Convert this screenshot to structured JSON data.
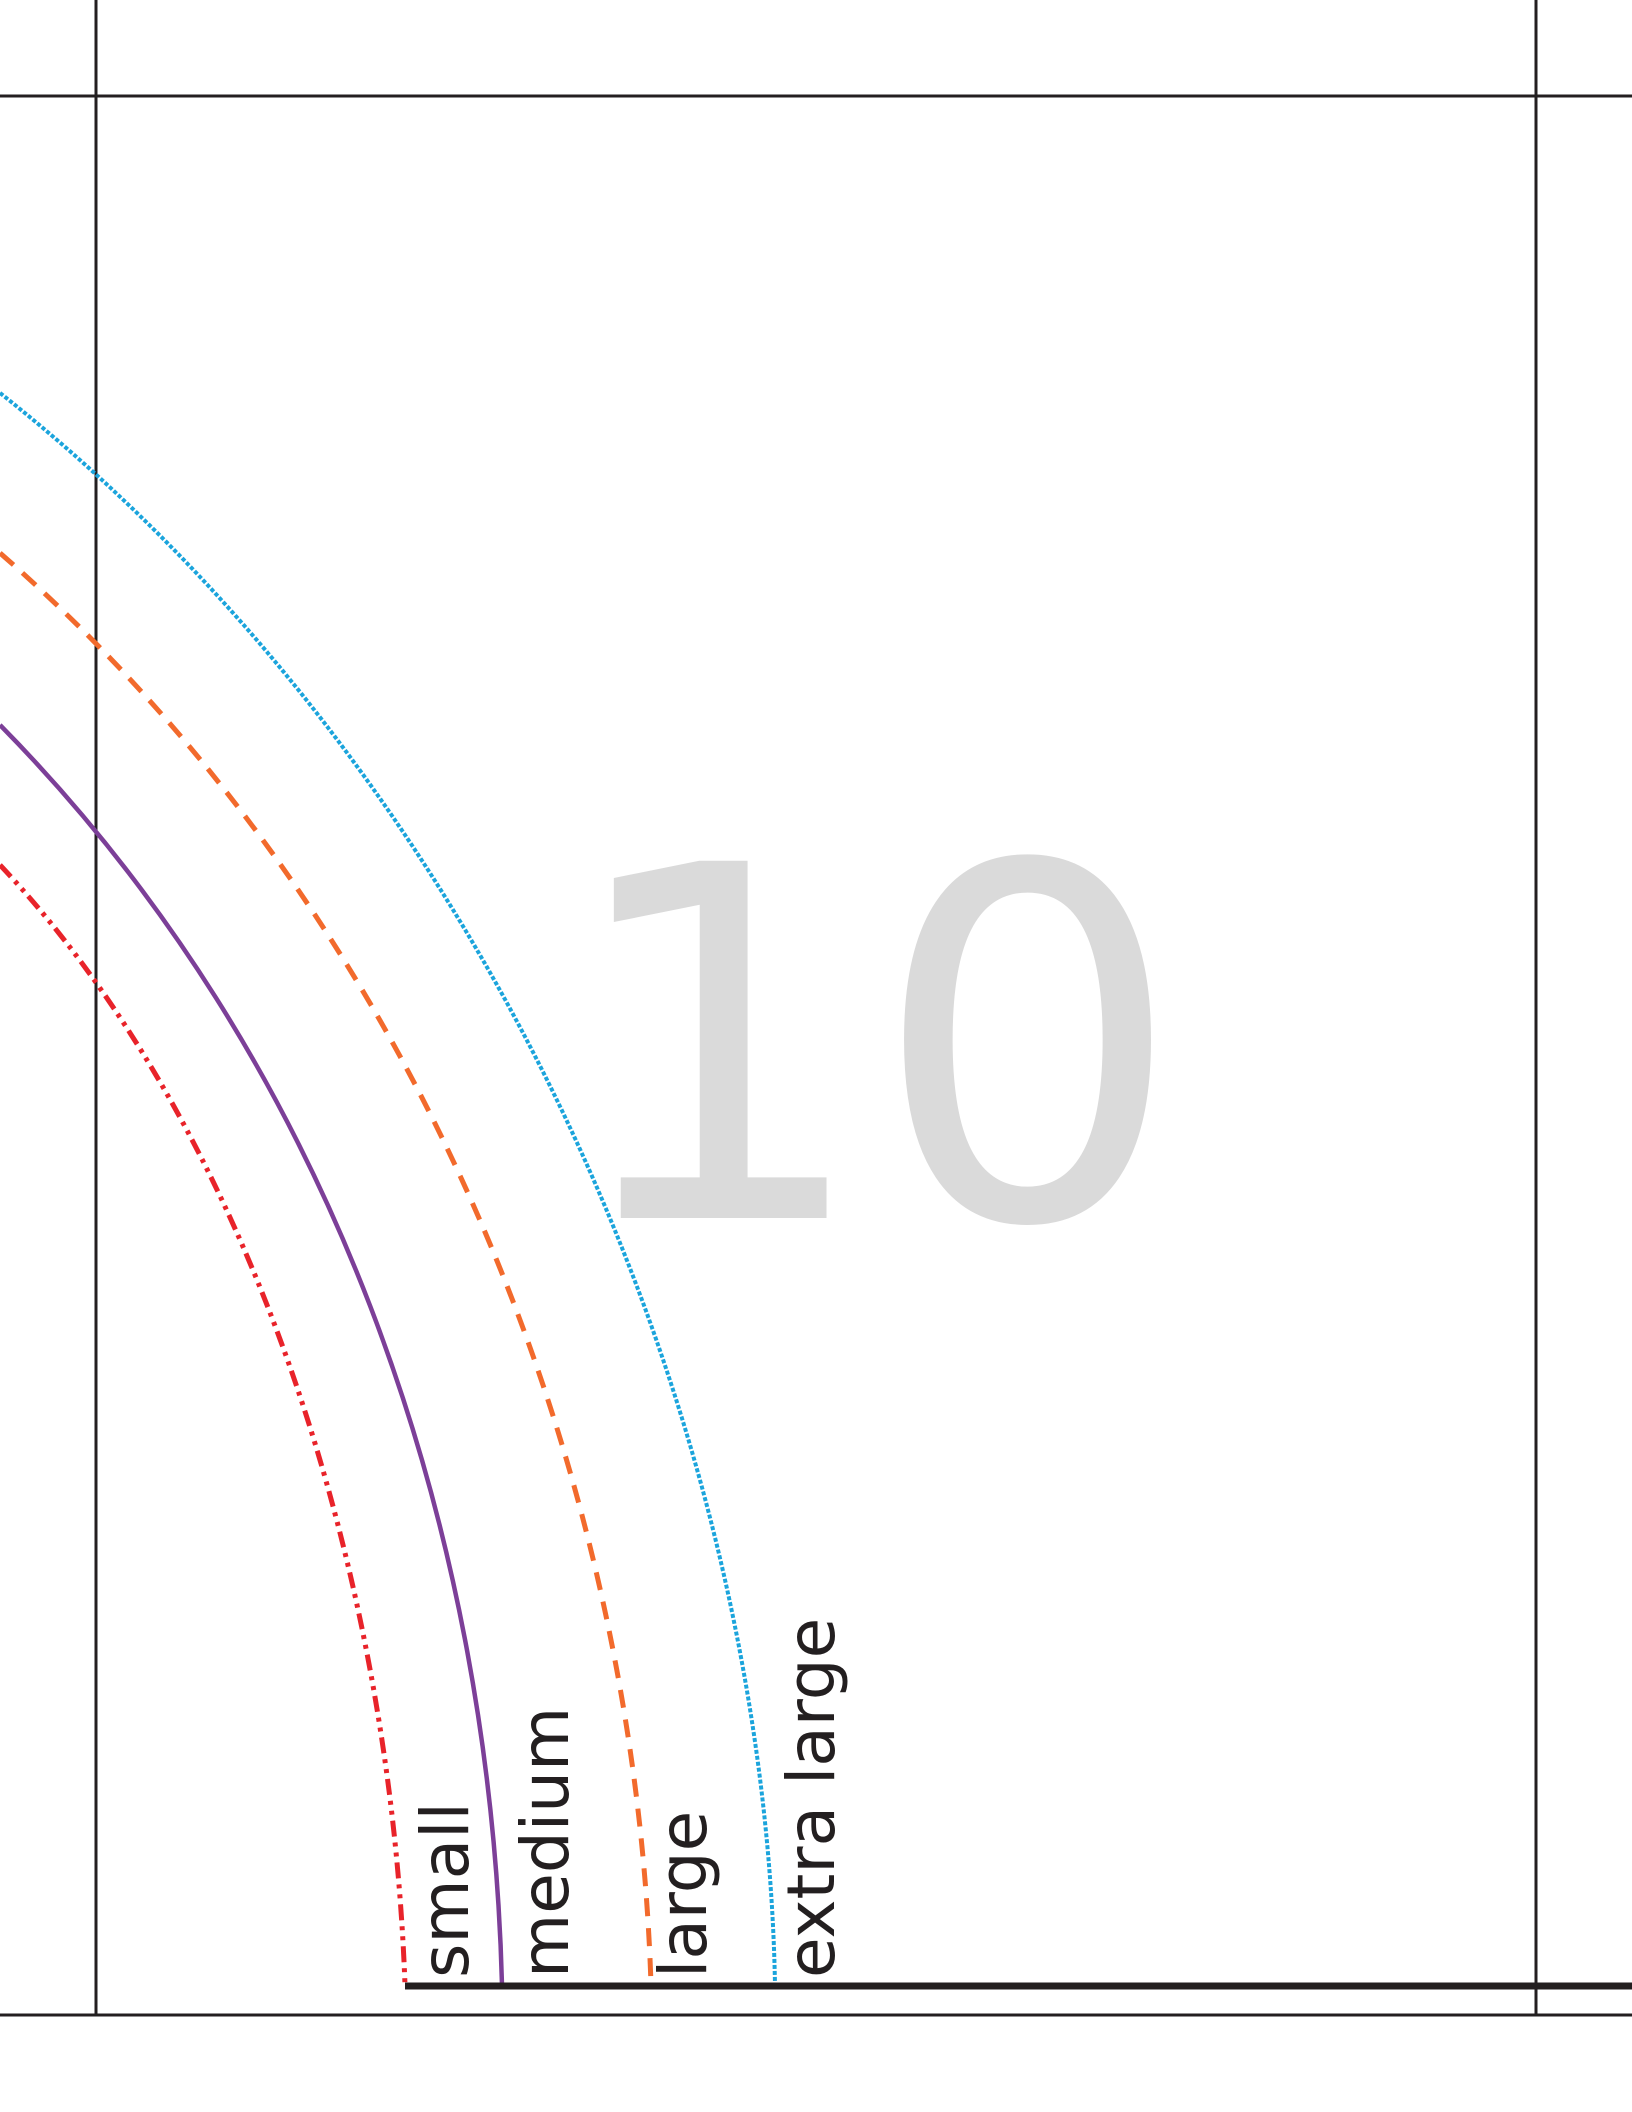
{
  "page_number": "10",
  "sizes": [
    {
      "key": "small",
      "label": "small",
      "color": "#e8232a",
      "line_style": "dash-dot"
    },
    {
      "key": "medium",
      "label": "medium",
      "color": "#7c3f98",
      "line_style": "solid"
    },
    {
      "key": "large",
      "label": "large",
      "color": "#f26a2c",
      "line_style": "dashed"
    },
    {
      "key": "extra_large",
      "label": "extra large",
      "color": "#1ba4dc",
      "line_style": "dotted"
    }
  ],
  "colors": {
    "frame_line": "#231f20",
    "page_number": "#dadada",
    "label_text": "#231f20"
  }
}
